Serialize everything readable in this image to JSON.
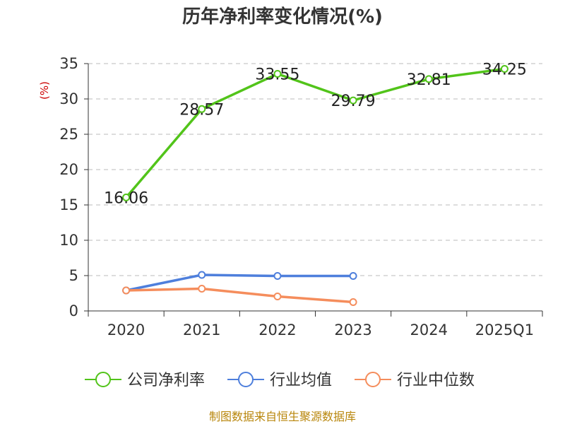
{
  "chart_data": {
    "type": "line",
    "title": "历年净利率变化情况(%)",
    "ylabel": "(%)",
    "categories": [
      "2020",
      "2021",
      "2022",
      "2023",
      "2024",
      "2025Q1"
    ],
    "ylim": [
      0,
      35
    ],
    "yticks": [
      0,
      5,
      10,
      15,
      20,
      25,
      30,
      35
    ],
    "grid": true,
    "legend_position": "bottom",
    "series": [
      {
        "name": "公司净利率",
        "color": "#52c41a",
        "values": [
          16.06,
          28.57,
          33.55,
          29.79,
          32.81,
          34.25
        ],
        "show_labels": true
      },
      {
        "name": "行业均值",
        "color": "#4e7fdc",
        "values": [
          2.9,
          5.1,
          4.95,
          4.95,
          null,
          null
        ],
        "show_labels": false
      },
      {
        "name": "行业中位数",
        "color": "#f58d5c",
        "values": [
          2.9,
          3.15,
          2.05,
          1.25,
          null,
          null
        ],
        "show_labels": false
      }
    ]
  },
  "footer": "制图数据来自恒生聚源数据库"
}
